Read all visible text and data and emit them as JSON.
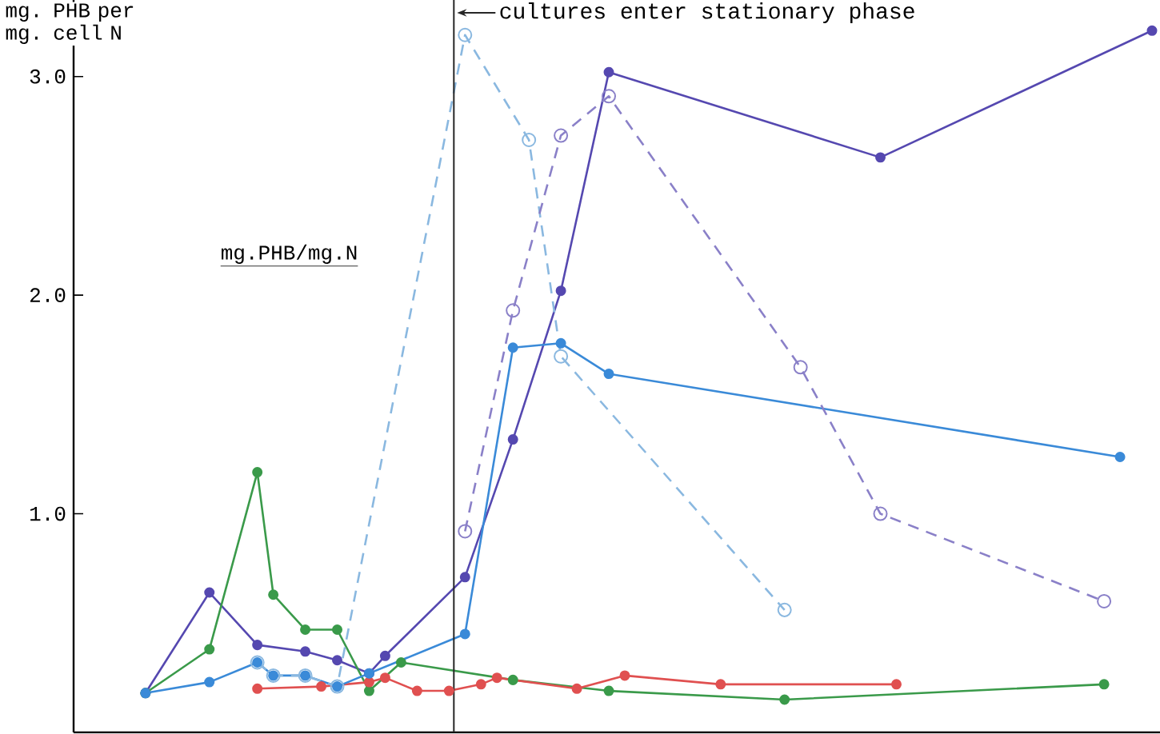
{
  "chart_data": {
    "type": "line",
    "ylabel": "mg. PHB per mg. cell N",
    "annotations": [
      "mg.PHB/mg.N",
      "cultures enter stationary phase"
    ],
    "categories": [
      null,
      null,
      null,
      null,
      null,
      null,
      null,
      null,
      null,
      null,
      null,
      null,
      null,
      null,
      null,
      null,
      null,
      null,
      null,
      null,
      null,
      null,
      null,
      null,
      null,
      null,
      null,
      null,
      null,
      null,
      null,
      null,
      null,
      null,
      null,
      null,
      null,
      null,
      null,
      null,
      null,
      null,
      null,
      null,
      null,
      null,
      null,
      null,
      null,
      null,
      null,
      null,
      null,
      null,
      null,
      null,
      null,
      null,
      null,
      null,
      null,
      null,
      null,
      null,
      null,
      null,
      null,
      null
    ],
    "ylim": [
      0,
      3.35
    ],
    "yticks": [
      {
        "value": 1,
        "label": "1.0"
      },
      {
        "value": 2,
        "label": "2.0"
      },
      {
        "value": 3,
        "label": "3.0"
      }
    ],
    "tick_labels": "y",
    "marker": "circle",
    "series": [
      {
        "color": "#5548b0",
        "line_style": "solid",
        "values": [
          null,
          null,
          null,
          null,
          0.18,
          null,
          null,
          null,
          0.64,
          null,
          null,
          0.4,
          null,
          null,
          0.37,
          null,
          0.33,
          null,
          0.27,
          0.35,
          null,
          null,
          null,
          null,
          0.71,
          null,
          null,
          1.34,
          null,
          null,
          2.02,
          null,
          null,
          3.02,
          null,
          null,
          null,
          null,
          null,
          null,
          null,
          null,
          null,
          null,
          null,
          null,
          null,
          null,
          null,
          null,
          2.63,
          null,
          null,
          null,
          null,
          null,
          null,
          null,
          null,
          null,
          null,
          null,
          null,
          null,
          null,
          null,
          null,
          3.21
        ]
      },
      {
        "color": "#3a9a4a",
        "line_style": "solid",
        "values": [
          null,
          null,
          null,
          null,
          0.18,
          null,
          null,
          null,
          0.38,
          null,
          null,
          1.19,
          0.63,
          null,
          0.47,
          null,
          0.47,
          null,
          0.19,
          null,
          0.32,
          null,
          null,
          null,
          null,
          null,
          null,
          0.24,
          null,
          null,
          null,
          null,
          null,
          0.19,
          null,
          null,
          null,
          null,
          null,
          null,
          null,
          null,
          null,
          null,
          0.15,
          null,
          null,
          null,
          null,
          null,
          null,
          null,
          null,
          null,
          null,
          null,
          null,
          null,
          null,
          null,
          null,
          null,
          null,
          null,
          0.22,
          null,
          null,
          null
        ]
      },
      {
        "color": "#e05050",
        "line_style": "solid",
        "values": [
          null,
          null,
          null,
          null,
          null,
          null,
          null,
          null,
          null,
          null,
          null,
          0.2,
          null,
          null,
          null,
          0.21,
          null,
          null,
          0.23,
          0.25,
          null,
          0.19,
          null,
          0.19,
          null,
          0.22,
          0.25,
          null,
          null,
          null,
          null,
          0.2,
          null,
          null,
          0.26,
          null,
          null,
          null,
          null,
          null,
          0.22,
          null,
          null,
          null,
          null,
          null,
          null,
          null,
          null,
          null,
          null,
          0.22,
          null,
          null,
          null,
          null,
          null,
          null,
          null,
          null,
          null,
          null,
          null,
          null,
          null,
          null,
          null,
          null
        ]
      },
      {
        "color": "#3a8ad8",
        "line_style": "solid",
        "values": [
          null,
          null,
          null,
          null,
          0.18,
          null,
          null,
          null,
          0.23,
          null,
          null,
          0.32,
          0.26,
          null,
          0.26,
          null,
          0.21,
          null,
          0.27,
          null,
          null,
          null,
          null,
          null,
          0.45,
          null,
          null,
          1.76,
          null,
          null,
          1.78,
          null,
          null,
          1.64,
          null,
          null,
          null,
          null,
          null,
          null,
          null,
          null,
          null,
          null,
          null,
          null,
          null,
          null,
          null,
          null,
          null,
          null,
          null,
          null,
          null,
          null,
          null,
          null,
          null,
          null,
          null,
          null,
          null,
          null,
          null,
          1.26,
          null,
          null
        ]
      },
      {
        "color": "#8ab8e0",
        "line_style": "dashed",
        "values": [
          null,
          null,
          null,
          null,
          null,
          null,
          null,
          null,
          null,
          null,
          null,
          0.32,
          0.26,
          null,
          0.26,
          null,
          0.21,
          null,
          null,
          null,
          null,
          null,
          null,
          null,
          3.19,
          null,
          null,
          null,
          2.71,
          null,
          1.72,
          null,
          null,
          null,
          null,
          null,
          null,
          null,
          null,
          null,
          null,
          null,
          null,
          null,
          0.56,
          null,
          null,
          null,
          null,
          null,
          null,
          null,
          null,
          null,
          null,
          null,
          null,
          null,
          null,
          null,
          null,
          null,
          null,
          null,
          null,
          null,
          null,
          null
        ]
      },
      {
        "color": "#8a80c8",
        "line_style": "dashed",
        "values": [
          null,
          null,
          null,
          null,
          null,
          null,
          null,
          null,
          null,
          null,
          null,
          null,
          null,
          null,
          null,
          null,
          null,
          null,
          null,
          null,
          null,
          null,
          null,
          null,
          0.92,
          null,
          null,
          1.93,
          null,
          null,
          2.73,
          null,
          null,
          2.91,
          null,
          null,
          null,
          null,
          null,
          null,
          null,
          null,
          null,
          null,
          null,
          1.67,
          null,
          null,
          null,
          null,
          1.0,
          null,
          null,
          null,
          null,
          null,
          null,
          null,
          null,
          null,
          null,
          null,
          null,
          null,
          0.6,
          null,
          null,
          null
        ]
      }
    ]
  }
}
